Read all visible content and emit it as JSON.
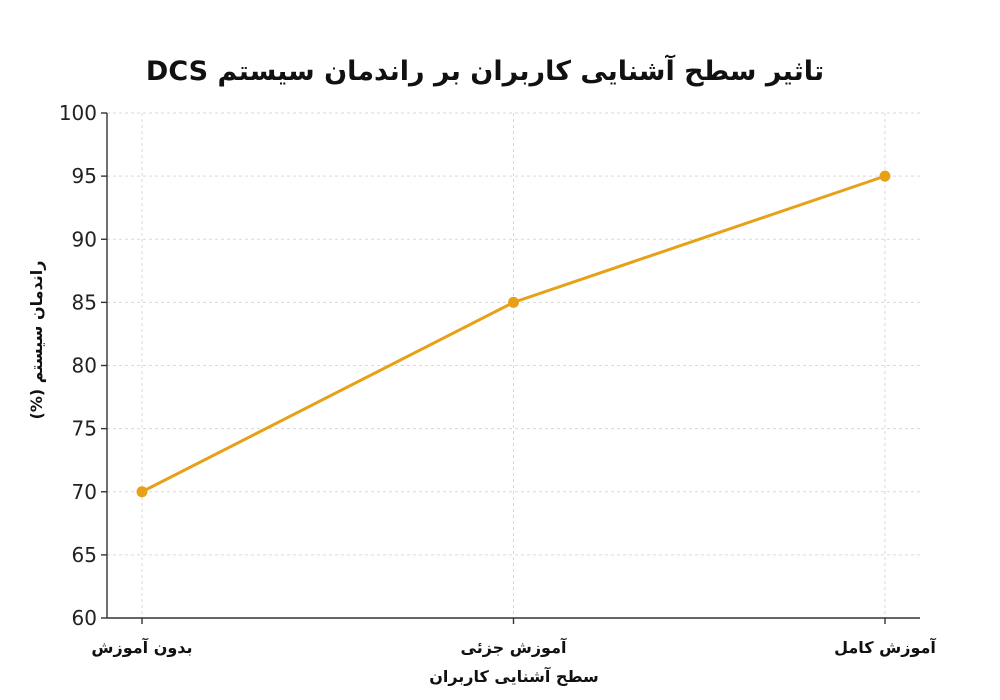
{
  "chart_data": {
    "type": "line",
    "title": "تاثیر سطح آشنایی کاربران بر راندمان سیستم DCS",
    "xlabel": "سطح آشنایی کاربران",
    "ylabel": "راندمان سیستم (%)",
    "categories": [
      "بدون آموزش",
      "آموزش جزئی",
      "آموزش کامل"
    ],
    "series": [
      {
        "values": [
          70,
          85,
          95
        ],
        "color": "#E6A117"
      }
    ],
    "ylim": [
      60,
      100
    ],
    "yticks": [
      60,
      65,
      70,
      75,
      80,
      85,
      90,
      95,
      100
    ],
    "grid": true,
    "legend": "none"
  }
}
